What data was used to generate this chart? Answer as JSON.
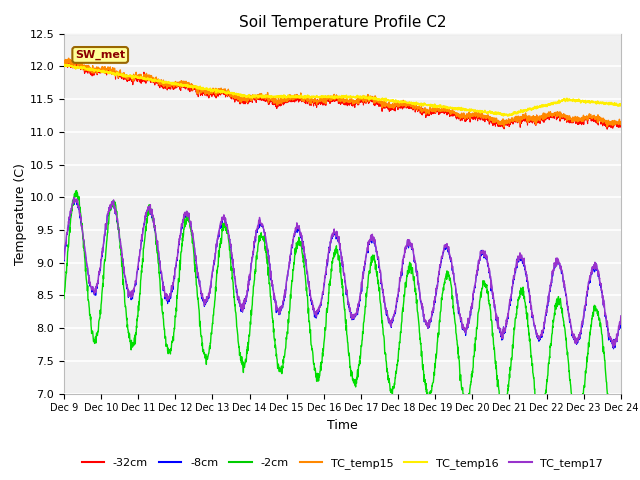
{
  "title": "Soil Temperature Profile C2",
  "xlabel": "Time",
  "ylabel": "Temperature (C)",
  "ylim": [
    7.0,
    12.5
  ],
  "xlim": [
    0,
    15.0
  ],
  "x_tick_labels": [
    "Dec 9",
    "Dec 10",
    "Dec 11",
    "Dec 12",
    "Dec 13",
    "Dec 14",
    "Dec 15",
    "Dec 16",
    "Dec 17",
    "Dec 18",
    "Dec 19",
    "Dec 20",
    "Dec 21",
    "Dec 22",
    "Dec 23",
    "Dec 24"
  ],
  "yticks": [
    7.0,
    7.5,
    8.0,
    8.5,
    9.0,
    9.5,
    10.0,
    10.5,
    11.0,
    11.5,
    12.0,
    12.5
  ],
  "fig_bg_color": "#ffffff",
  "plot_bg_color": "#f0f0f0",
  "sw_met_box_color": "#ffff99",
  "sw_met_text_color": "#8b0000",
  "sw_met_border_color": "#996600",
  "legend_entries": [
    "-32cm",
    "-8cm",
    "-2cm",
    "TC_temp15",
    "TC_temp16",
    "TC_temp17"
  ],
  "legend_colors": [
    "#ff0000",
    "#0000ff",
    "#00cc00",
    "#ff8800",
    "#ffee00",
    "#9933cc"
  ],
  "line_32cm_color": "#ff0000",
  "line_8cm_color": "#0000ff",
  "line_2cm_color": "#00dd00",
  "line_tc15_color": "#ff8800",
  "line_tc16_color": "#ffee00",
  "line_tc17_color": "#9933cc",
  "grid_color": "#e8e8e8"
}
